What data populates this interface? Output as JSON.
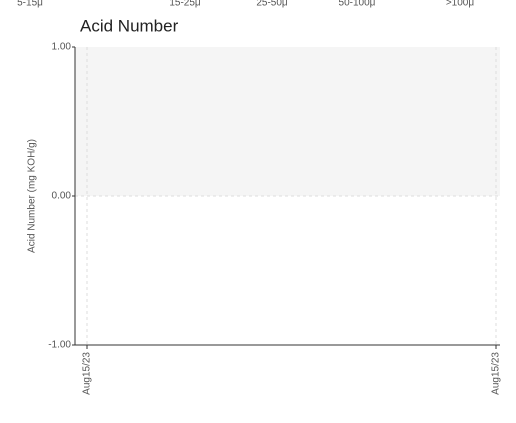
{
  "chart_data": {
    "type": "line",
    "header_labels": [
      "5-15μ",
      "15-25μ",
      "25-50μ",
      "50-100μ",
      ">100μ"
    ],
    "title": "Acid Number",
    "y_label": "Acid Number (mg KOH/g)",
    "categories": [
      "Aug15/23",
      "Aug15/23"
    ],
    "series": [],
    "ylim": [
      -1,
      1
    ],
    "yticks": [
      {
        "value": 1,
        "label": "1.00"
      },
      {
        "value": 0,
        "label": "0.00"
      },
      {
        "value": -1,
        "label": "-1.00"
      }
    ],
    "highlight_range": [
      0,
      1
    ],
    "grid": true
  }
}
